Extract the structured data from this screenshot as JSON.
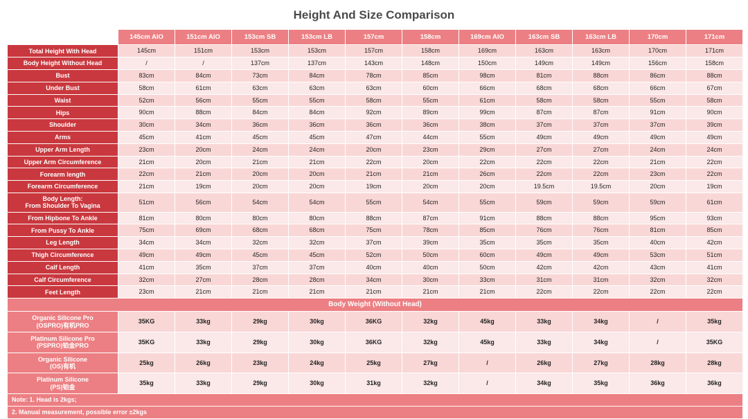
{
  "title": "Height And Size Comparison",
  "columns": [
    "145cm AIO",
    "151cm AIO",
    "153cm SB",
    "153cm LB",
    "157cm",
    "158cm",
    "169cm AIO",
    "163cm SB",
    "163cm LB",
    "170cm",
    "171cm"
  ],
  "measureRows": [
    {
      "label": "Total Height With Head",
      "v": [
        "145cm",
        "151cm",
        "153cm",
        "153cm",
        "157cm",
        "158cm",
        "169cm",
        "163cm",
        "163cm",
        "170cm",
        "171cm"
      ]
    },
    {
      "label": "Body Height Without Head",
      "v": [
        "/",
        "/",
        "137cm",
        "137cm",
        "143cm",
        "148cm",
        "150cm",
        "149cm",
        "149cm",
        "156cm",
        "158cm"
      ]
    },
    {
      "label": "Bust",
      "v": [
        "83cm",
        "84cm",
        "73cm",
        "84cm",
        "78cm",
        "85cm",
        "98cm",
        "81cm",
        "88cm",
        "86cm",
        "88cm"
      ]
    },
    {
      "label": "Under Bust",
      "v": [
        "58cm",
        "61cm",
        "63cm",
        "63cm",
        "63cm",
        "60cm",
        "66cm",
        "68cm",
        "68cm",
        "66cm",
        "67cm"
      ]
    },
    {
      "label": "Waist",
      "v": [
        "52cm",
        "56cm",
        "55cm",
        "55cm",
        "58cm",
        "55cm",
        "61cm",
        "58cm",
        "58cm",
        "55cm",
        "58cm"
      ]
    },
    {
      "label": "Hips",
      "v": [
        "90cm",
        "88cm",
        "84cm",
        "84cm",
        "92cm",
        "89cm",
        "99cm",
        "87cm",
        "87cm",
        "91cm",
        "90cm"
      ]
    },
    {
      "label": "Shoulder",
      "v": [
        "30cm",
        "34cm",
        "36cm",
        "36cm",
        "36cm",
        "36cm",
        "38cm",
        "37cm",
        "37cm",
        "37cm",
        "39cm"
      ]
    },
    {
      "label": "Arms",
      "v": [
        "45cm",
        "41cm",
        "45cm",
        "45cm",
        "47cm",
        "44cm",
        "55cm",
        "49cm",
        "49cm",
        "49cm",
        "49cm"
      ]
    },
    {
      "label": "Upper Arm Length",
      "v": [
        "23cm",
        "20cm",
        "24cm",
        "24cm",
        "20cm",
        "23cm",
        "29cm",
        "27cm",
        "27cm",
        "24cm",
        "24cm"
      ]
    },
    {
      "label": "Upper Arm Circumference",
      "v": [
        "21cm",
        "20cm",
        "21cm",
        "21cm",
        "22cm",
        "20cm",
        "22cm",
        "22cm",
        "22cm",
        "21cm",
        "22cm"
      ]
    },
    {
      "label": "Forearm length",
      "v": [
        "22cm",
        "21cm",
        "20cm",
        "20cm",
        "21cm",
        "21cm",
        "26cm",
        "22cm",
        "22cm",
        "23cm",
        "22cm"
      ]
    },
    {
      "label": "Forearm Circumference",
      "v": [
        "21cm",
        "19cm",
        "20cm",
        "20cm",
        "19cm",
        "20cm",
        "20cm",
        "19.5cm",
        "19.5cm",
        "20cm",
        "19cm"
      ]
    },
    {
      "label": "Body Length:\nFrom Shoulder To Vagina",
      "v": [
        "51cm",
        "56cm",
        "54cm",
        "54cm",
        "55cm",
        "54cm",
        "55cm",
        "59cm",
        "59cm",
        "59cm",
        "61cm"
      ]
    },
    {
      "label": "From Hipbone To Ankle",
      "v": [
        "81cm",
        "80cm",
        "80cm",
        "80cm",
        "88cm",
        "87cm",
        "91cm",
        "88cm",
        "88cm",
        "95cm",
        "93cm"
      ]
    },
    {
      "label": "From Pussy To Ankle",
      "v": [
        "75cm",
        "69cm",
        "68cm",
        "68cm",
        "75cm",
        "78cm",
        "85cm",
        "76cm",
        "76cm",
        "81cm",
        "85cm"
      ]
    },
    {
      "label": "Leg Length",
      "v": [
        "34cm",
        "34cm",
        "32cm",
        "32cm",
        "37cm",
        "39cm",
        "35cm",
        "35cm",
        "35cm",
        "40cm",
        "42cm"
      ]
    },
    {
      "label": "Thigh Circumference",
      "v": [
        "49cm",
        "49cm",
        "45cm",
        "45cm",
        "52cm",
        "50cm",
        "60cm",
        "49cm",
        "49cm",
        "53cm",
        "51cm"
      ]
    },
    {
      "label": "Calf Length",
      "v": [
        "41cm",
        "35cm",
        "37cm",
        "37cm",
        "40cm",
        "40cm",
        "50cm",
        "42cm",
        "42cm",
        "43cm",
        "41cm"
      ]
    },
    {
      "label": "Calf Circumference",
      "v": [
        "32cm",
        "27cm",
        "28cm",
        "28cm",
        "34cm",
        "30cm",
        "33cm",
        "31cm",
        "31cm",
        "32cm",
        "32cm"
      ]
    },
    {
      "label": "Feet Length",
      "v": [
        "23cm",
        "21cm",
        "21cm",
        "21cm",
        "21cm",
        "21cm",
        "21cm",
        "22cm",
        "22cm",
        "22cm",
        "22cm"
      ]
    }
  ],
  "weightBand": "Body Weight (Without Head)",
  "weightRows": [
    {
      "label": "Organic Silicone Pro\n(OSPRO)有机PRO",
      "v": [
        "35KG",
        "33kg",
        "29kg",
        "30kg",
        "36KG",
        "32kg",
        "45kg",
        "33kg",
        "34kg",
        "/",
        "35kg"
      ]
    },
    {
      "label": "Platinum Silicone Pro\n(PSPRO)铂金PRO",
      "v": [
        "35KG",
        "33kg",
        "29kg",
        "30kg",
        "36KG",
        "32kg",
        "45kg",
        "33kg",
        "34kg",
        "/",
        "35KG"
      ]
    },
    {
      "label": "Organic Silicone\n(OS)有机",
      "v": [
        "25kg",
        "26kg",
        "23kg",
        "24kg",
        "25kg",
        "27kg",
        "/",
        "26kg",
        "27kg",
        "28kg",
        "28kg"
      ]
    },
    {
      "label": "Platinum Silicone\n(PS)铂金",
      "v": [
        "35kg",
        "33kg",
        "29kg",
        "30kg",
        "31kg",
        "32kg",
        "/",
        "34kg",
        "35kg",
        "36kg",
        "36kg"
      ]
    }
  ],
  "notes": [
    "Note: 1. Head is 2kgs;",
    "2. Manual measurement, possible error ±2kgs"
  ]
}
